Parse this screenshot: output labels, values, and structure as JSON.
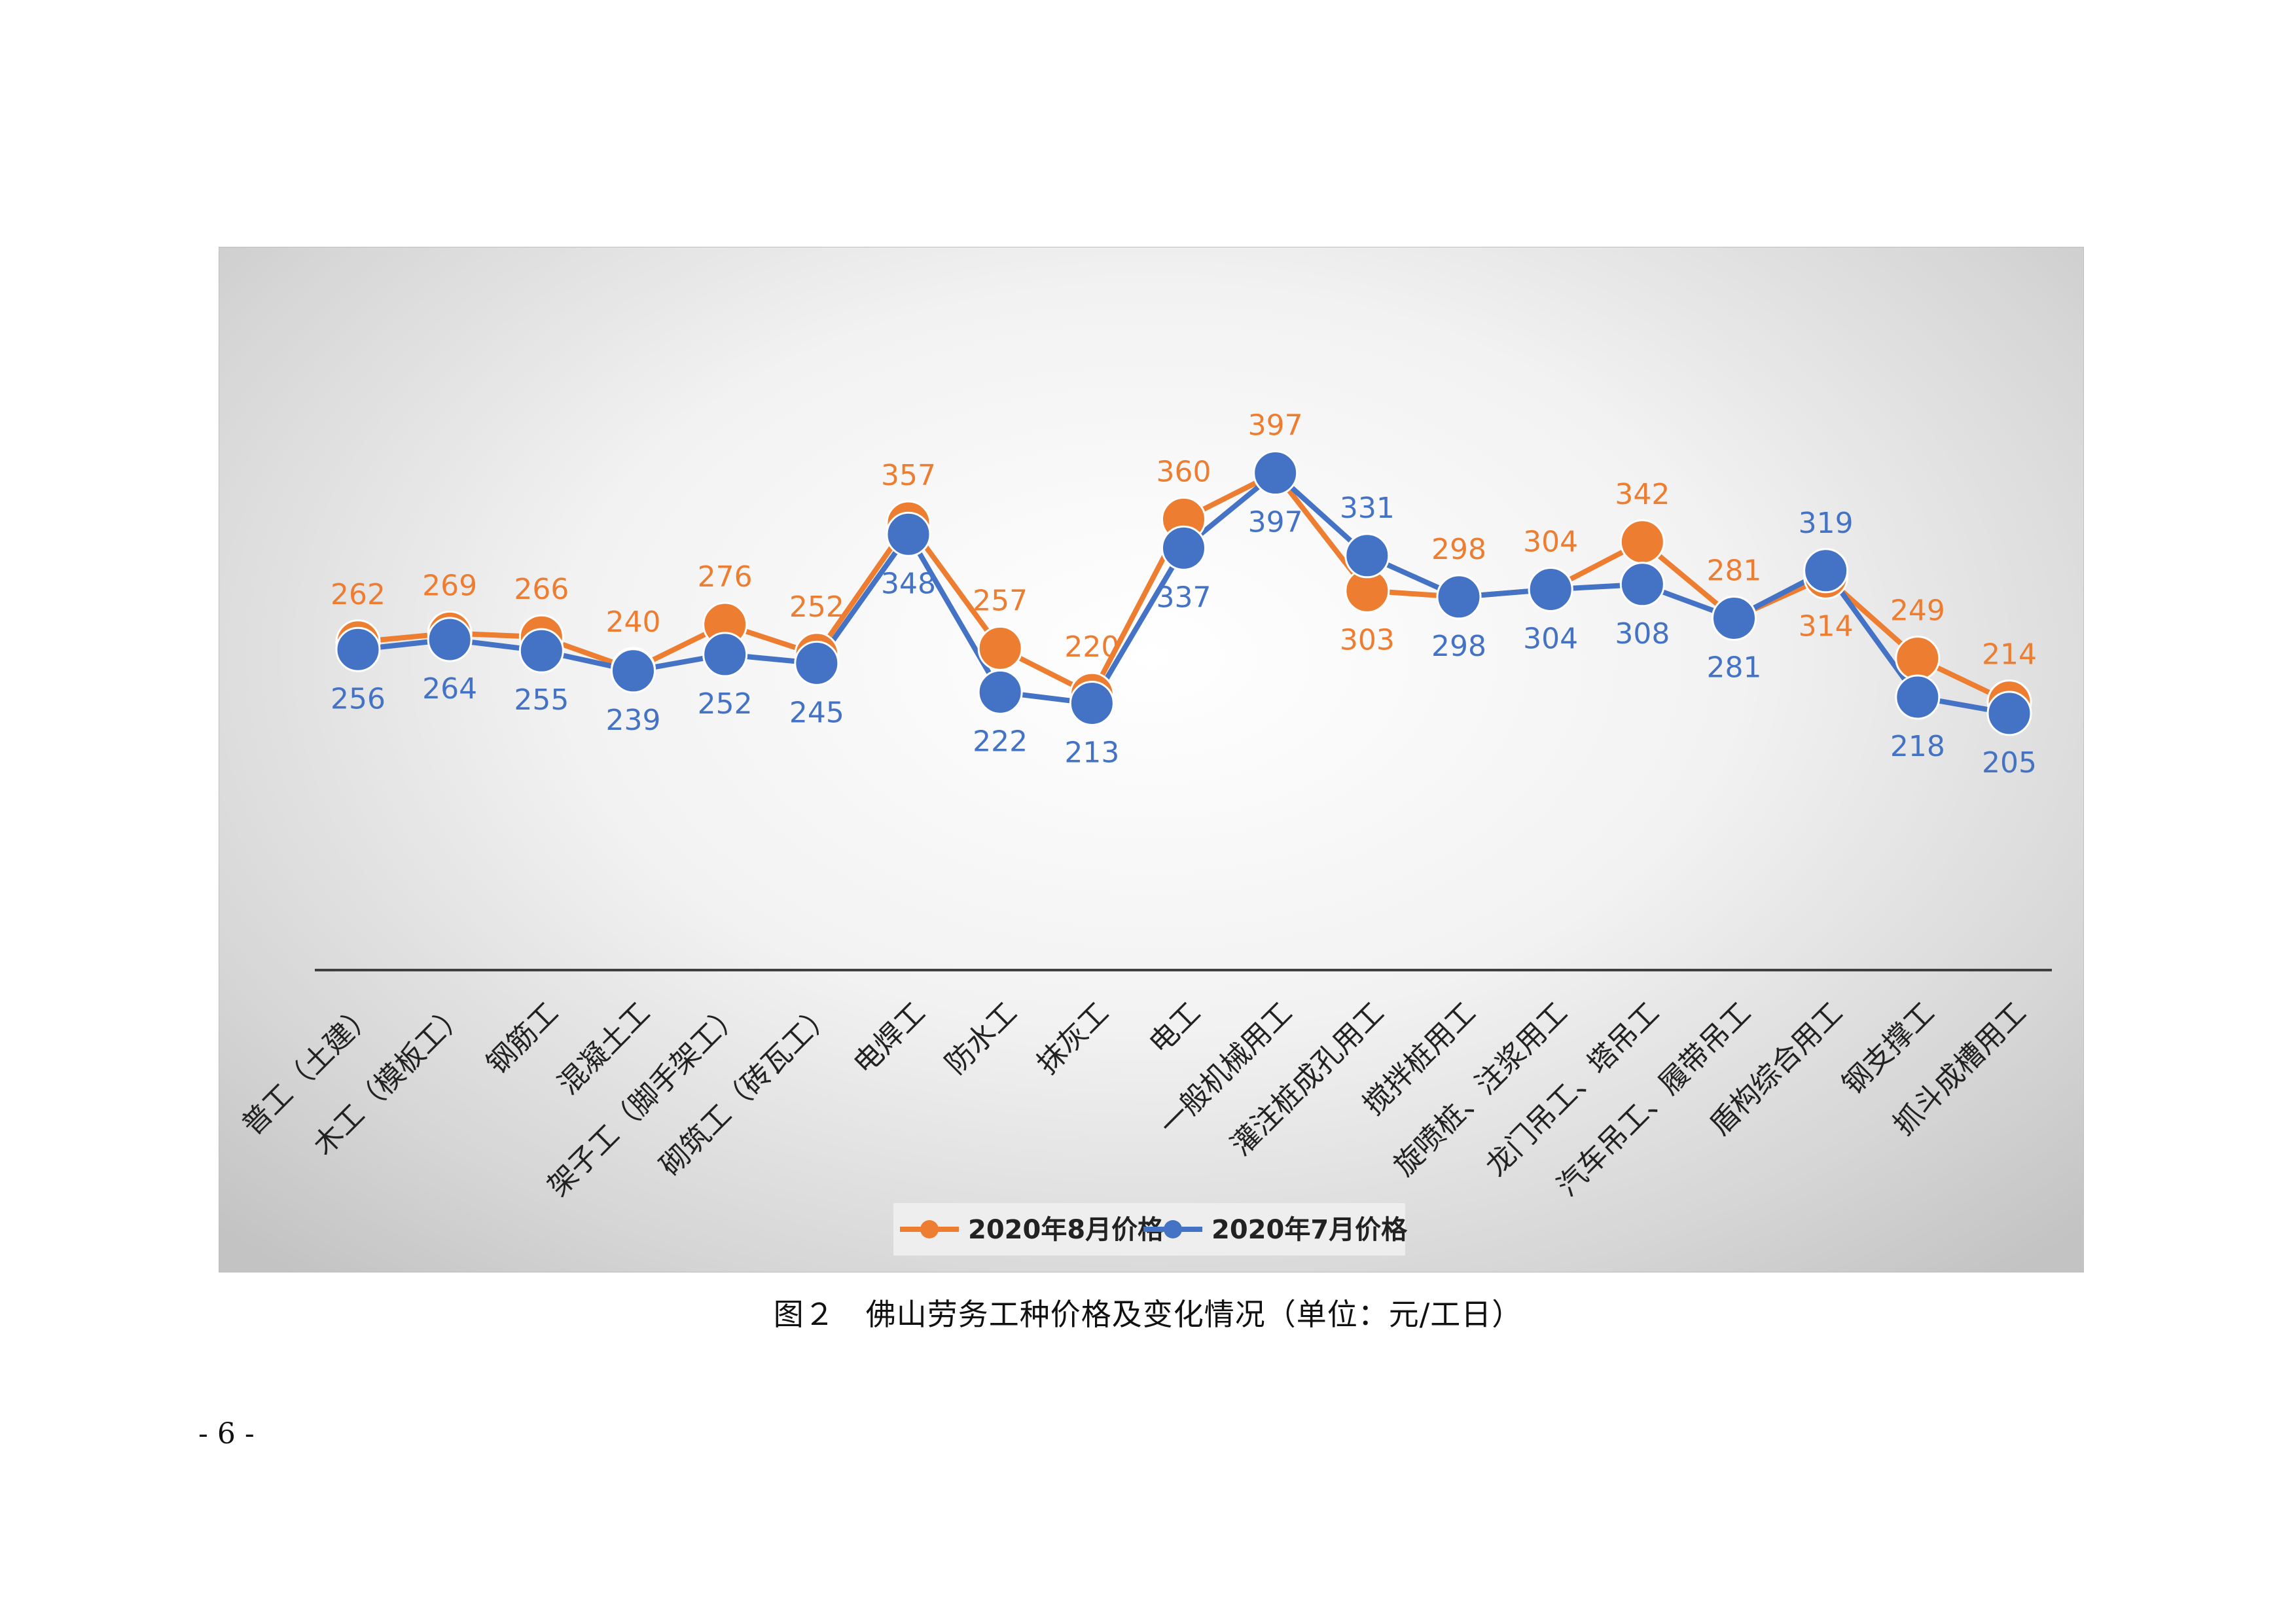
{
  "figure": {
    "caption": "图２　佛山劳务工种价格及变化情况（单位：元/工日）",
    "page_number": "- 6 -"
  },
  "colors": {
    "series_aug": "#ED7D31",
    "series_jul": "#4472C4",
    "axis": "#404040",
    "category_text": "#222222"
  },
  "chart_data": {
    "type": "line",
    "categories": [
      "普工（土建）",
      "木工（模板工）",
      "钢筋工",
      "混凝土工",
      "架子工（脚手架工）",
      "砌筑工（砖瓦工）",
      "电焊工",
      "防水工",
      "抹灰工",
      "电工",
      "一般机械用工",
      "灌注桩成孔用工",
      "搅拌桩用工",
      "旋喷桩、注浆用工",
      "龙门吊工、塔吊工",
      "汽车吊工、履带吊工",
      "盾构综合用工",
      "钢支撑工",
      "抓斗成槽用工"
    ],
    "series": [
      {
        "name": "2020年8月价格",
        "values": [
          262,
          269,
          266,
          240,
          276,
          252,
          357,
          257,
          220,
          360,
          397,
          303,
          298,
          304,
          342,
          281,
          314,
          249,
          214
        ]
      },
      {
        "name": "2020年7月价格",
        "values": [
          256,
          264,
          255,
          239,
          252,
          245,
          348,
          222,
          213,
          337,
          397,
          331,
          298,
          304,
          308,
          281,
          319,
          218,
          205
        ]
      }
    ],
    "xlabel": "",
    "ylabel": "",
    "ylim": [
      0,
      440
    ],
    "grid": false,
    "legend_position": "bottom",
    "data_labels": true
  }
}
